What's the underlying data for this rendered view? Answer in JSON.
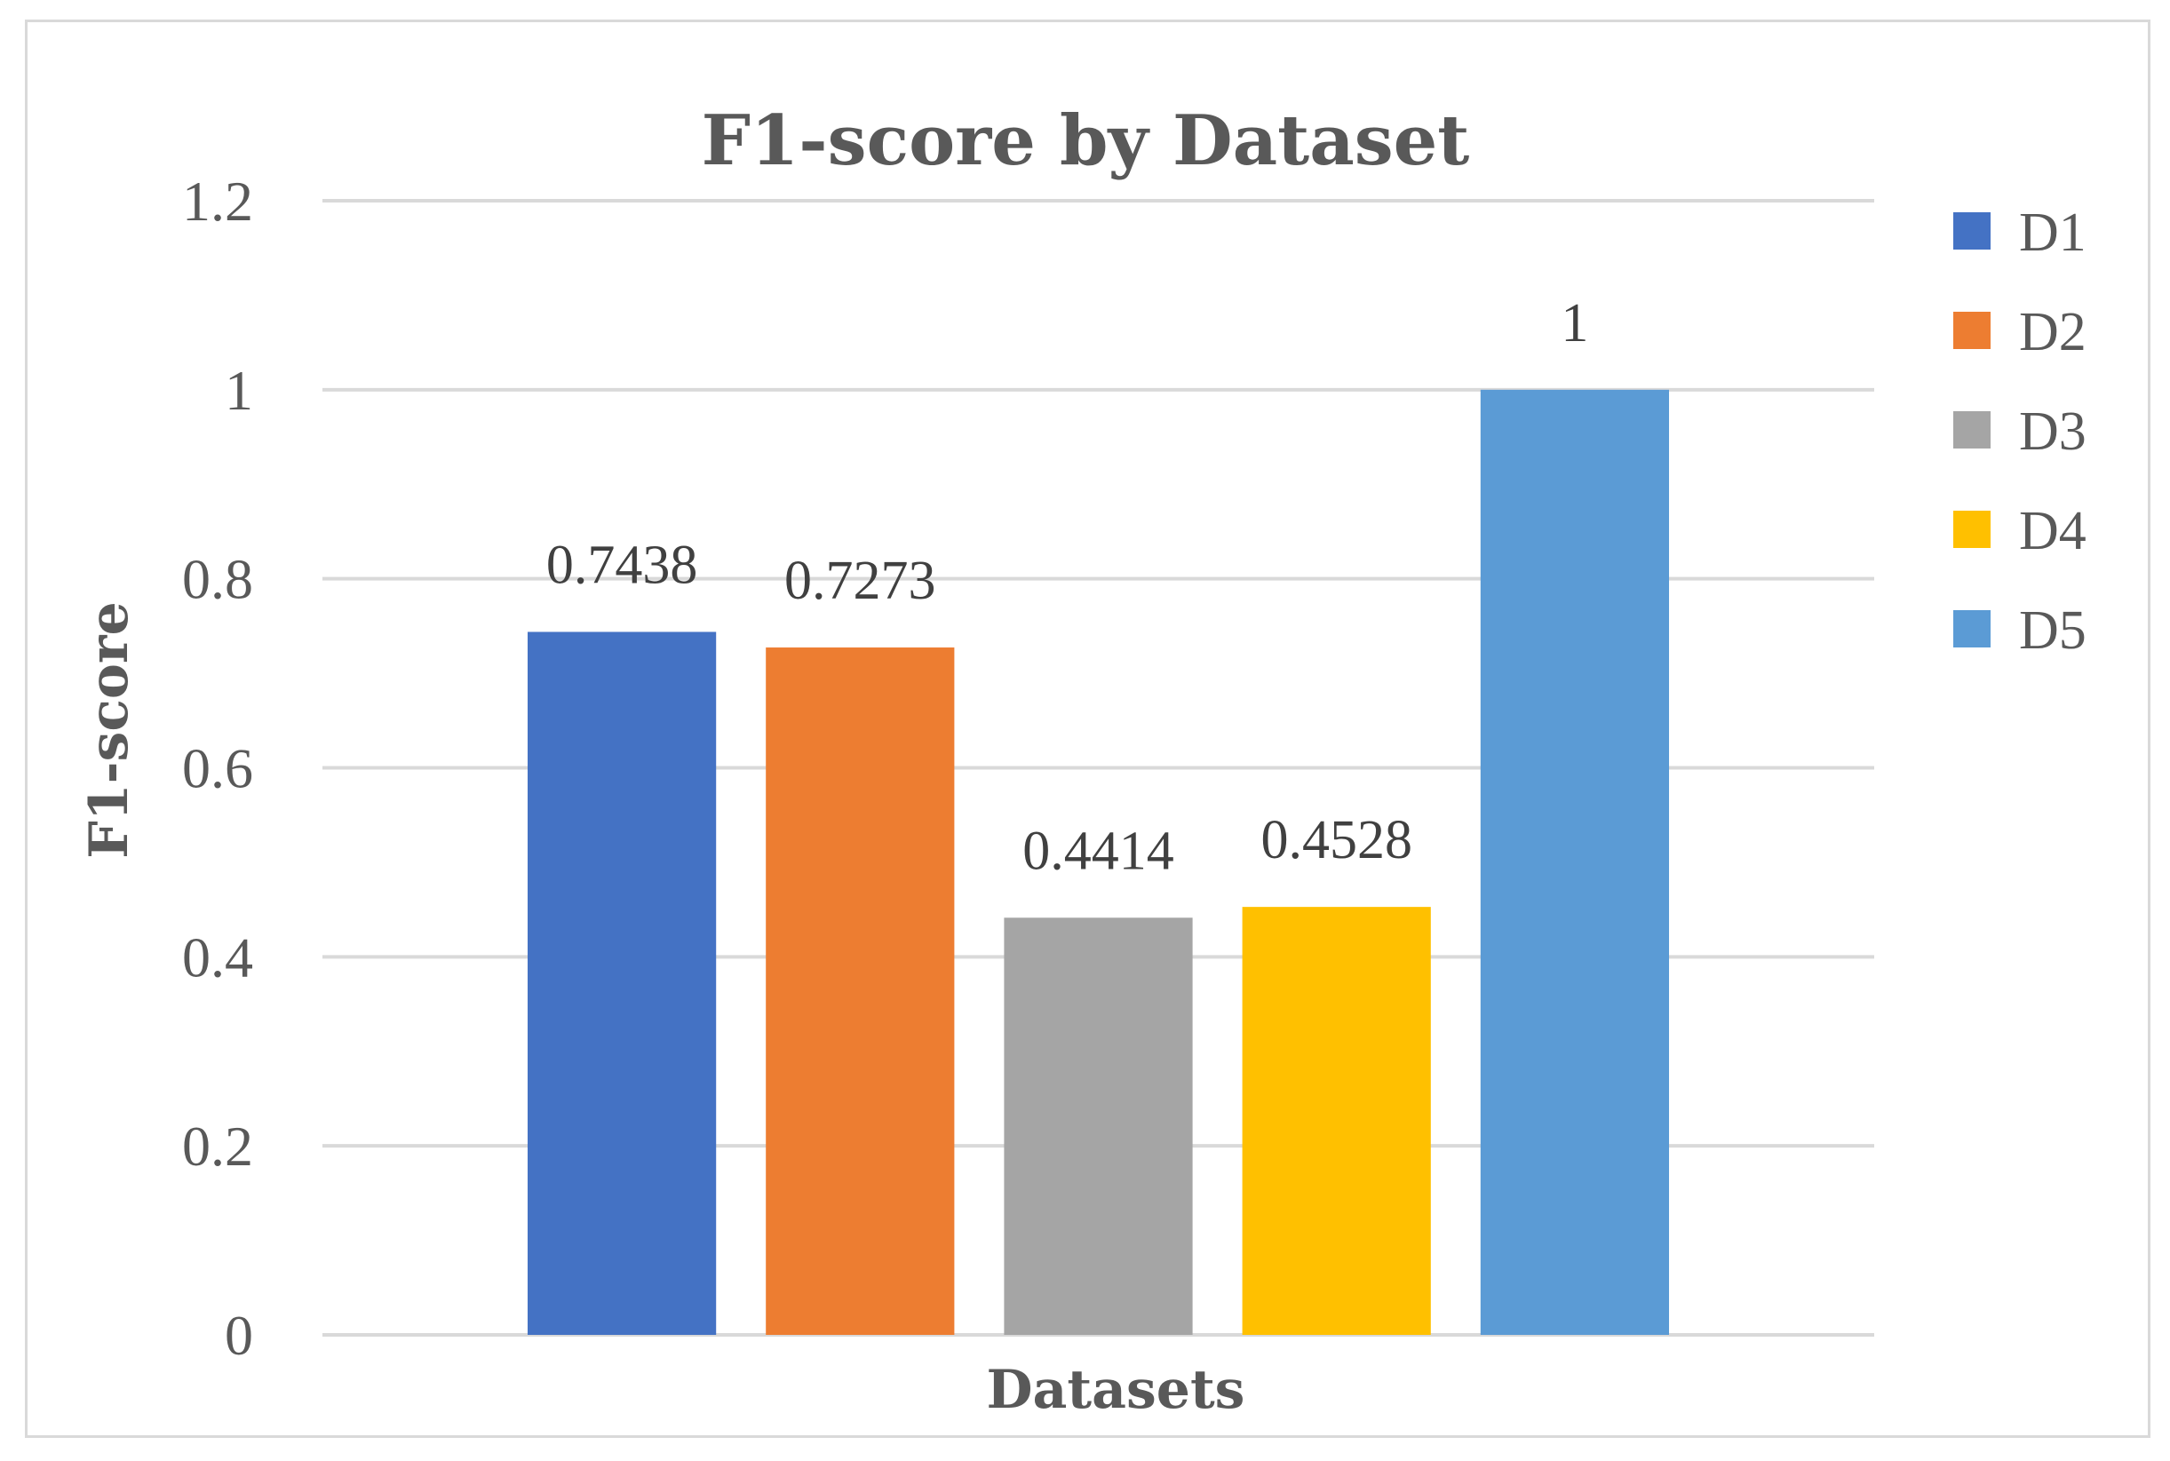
{
  "chart_data": {
    "type": "bar",
    "title": "F1-score by Dataset",
    "xlabel": "Datasets",
    "ylabel": "F1-score",
    "ylim": [
      0,
      1.2
    ],
    "yticks": [
      "0",
      "0.2",
      "0.4",
      "0.6",
      "0.8",
      "1",
      "1.2"
    ],
    "grid": true,
    "legend_position": "right",
    "series": [
      {
        "name": "D1",
        "value": 0.7438,
        "label": "0.7438",
        "color": "#4472C4"
      },
      {
        "name": "D2",
        "value": 0.7273,
        "label": "0.7273",
        "color": "#ED7D31"
      },
      {
        "name": "D3",
        "value": 0.4414,
        "label": "0.4414",
        "color": "#A5A5A5"
      },
      {
        "name": "D4",
        "value": 0.4528,
        "label": "0.4528",
        "color": "#FFC000"
      },
      {
        "name": "D5",
        "value": 1,
        "label": "1",
        "color": "#5B9BD5"
      }
    ]
  }
}
